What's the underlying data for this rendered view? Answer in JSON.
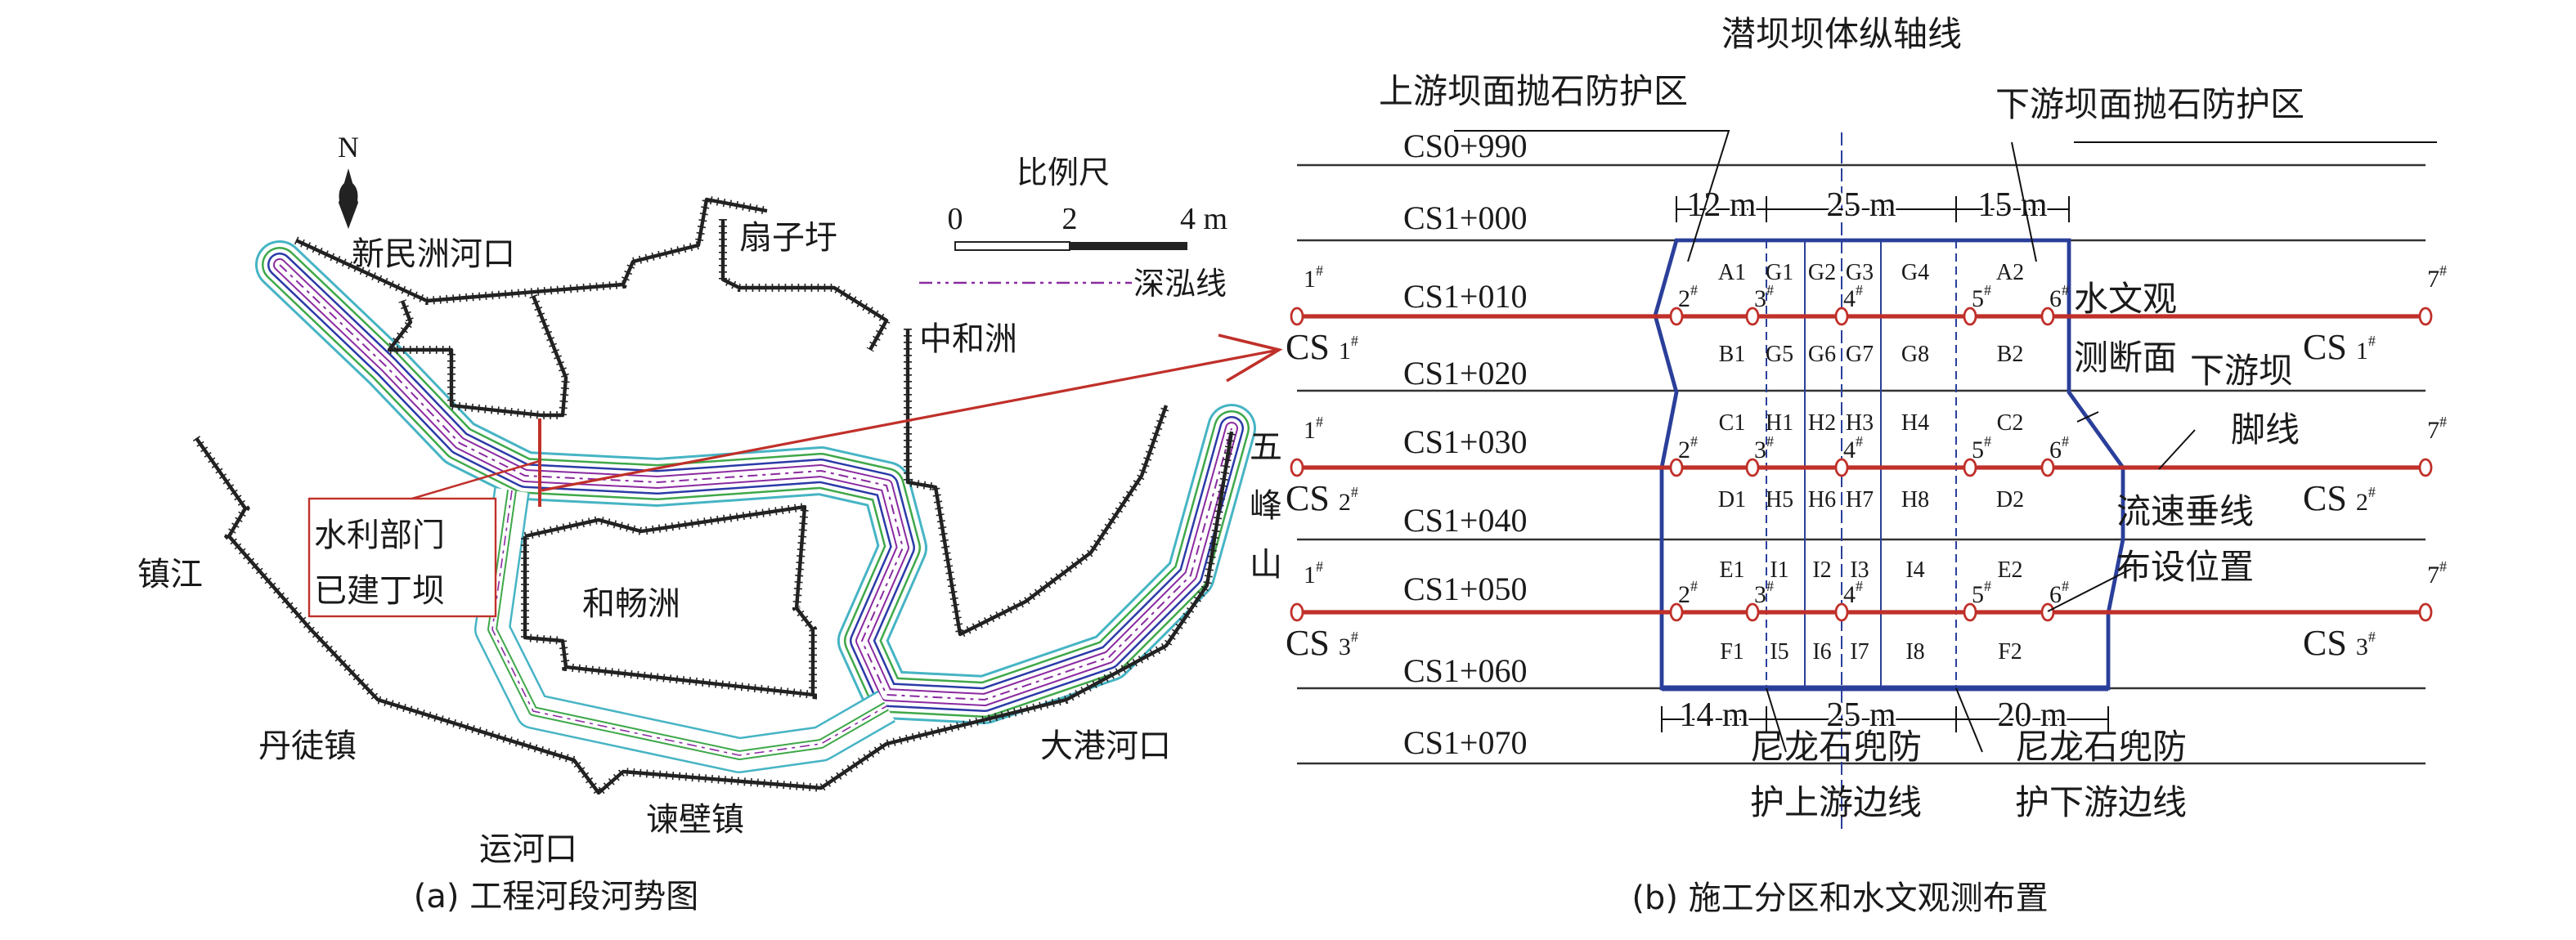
{
  "panel_a": {
    "caption": "(a) 工程河段河势图",
    "north": "N",
    "scale": {
      "title": "比例尺",
      "ticks": [
        "0",
        "2",
        "4 m"
      ]
    },
    "legend": {
      "thalweg": "深泓线"
    },
    "places": {
      "xinminzhou_mouth": "新民洲河口",
      "shanziwei": "扇子圩",
      "zhonghezhou": "中和洲",
      "wufengshan": [
        "五",
        "峰",
        "山"
      ],
      "zhenjiang": "镇江",
      "dantu": "丹徒镇",
      "yunhekou": "运河口",
      "jianbi": "谏壁镇",
      "dagang": "大港河口",
      "hechangzhou": "和畅洲"
    },
    "callout": [
      "水利部门",
      "已建丁坝"
    ],
    "colors": {
      "bank": "#222222",
      "cyan": "#46b4c4",
      "green": "#3fa84a",
      "blue": "#2b3aa8",
      "purple": "#8a2aa0",
      "red": "#c0302a"
    }
  },
  "panel_b": {
    "caption": "(b) 施工分区和水文观测布置",
    "axis_title": "潜坝坝体纵轴线",
    "upstream_zone": "上游坝面抛石防护区",
    "downstream_zone": "下游坝面抛石防护区",
    "stations": [
      "CS0+990",
      "CS1+000",
      "CS1+010",
      "CS1+020",
      "CS1+030",
      "CS1+040",
      "CS1+050",
      "CS1+060",
      "CS1+070"
    ],
    "top_dims": [
      "12 m",
      "25 m",
      "15 m"
    ],
    "bottom_dims": [
      "14 m",
      "25 m",
      "20 m"
    ],
    "cells": [
      [
        "A1",
        "G1",
        "G2",
        "G3",
        "G4",
        "A2"
      ],
      [
        "B1",
        "G5",
        "G6",
        "G7",
        "G8",
        "B2"
      ],
      [
        "C1",
        "H1",
        "H2",
        "H3",
        "H4",
        "C2"
      ],
      [
        "D1",
        "H5",
        "H6",
        "H7",
        "H8",
        "D2"
      ],
      [
        "E1",
        "I1",
        "I2",
        "I3",
        "I4",
        "E2"
      ],
      [
        "F1",
        "I5",
        "I6",
        "I7",
        "I8",
        "F2"
      ]
    ],
    "sections": [
      {
        "name": "CS",
        "num": "1",
        "mark": "#"
      },
      {
        "name": "CS",
        "num": "2",
        "mark": "#"
      },
      {
        "name": "CS",
        "num": "3",
        "mark": "#"
      }
    ],
    "points": [
      "1",
      "2",
      "3",
      "4",
      "5",
      "6",
      "7"
    ],
    "point_mark": "#",
    "notes": {
      "hydro_section": [
        "水文观",
        "测断面"
      ],
      "toe_line": [
        "下游坝",
        "脚线"
      ],
      "velocity": [
        "流速垂线",
        "布设位置"
      ],
      "nylon_up": [
        "尼龙石兜防",
        "护上游边线"
      ],
      "nylon_down": [
        "尼龙石兜防",
        "护下游边线"
      ]
    },
    "colors": {
      "dam": "#2a3f9a",
      "section": "#c0302a",
      "grid": "#333333"
    }
  }
}
